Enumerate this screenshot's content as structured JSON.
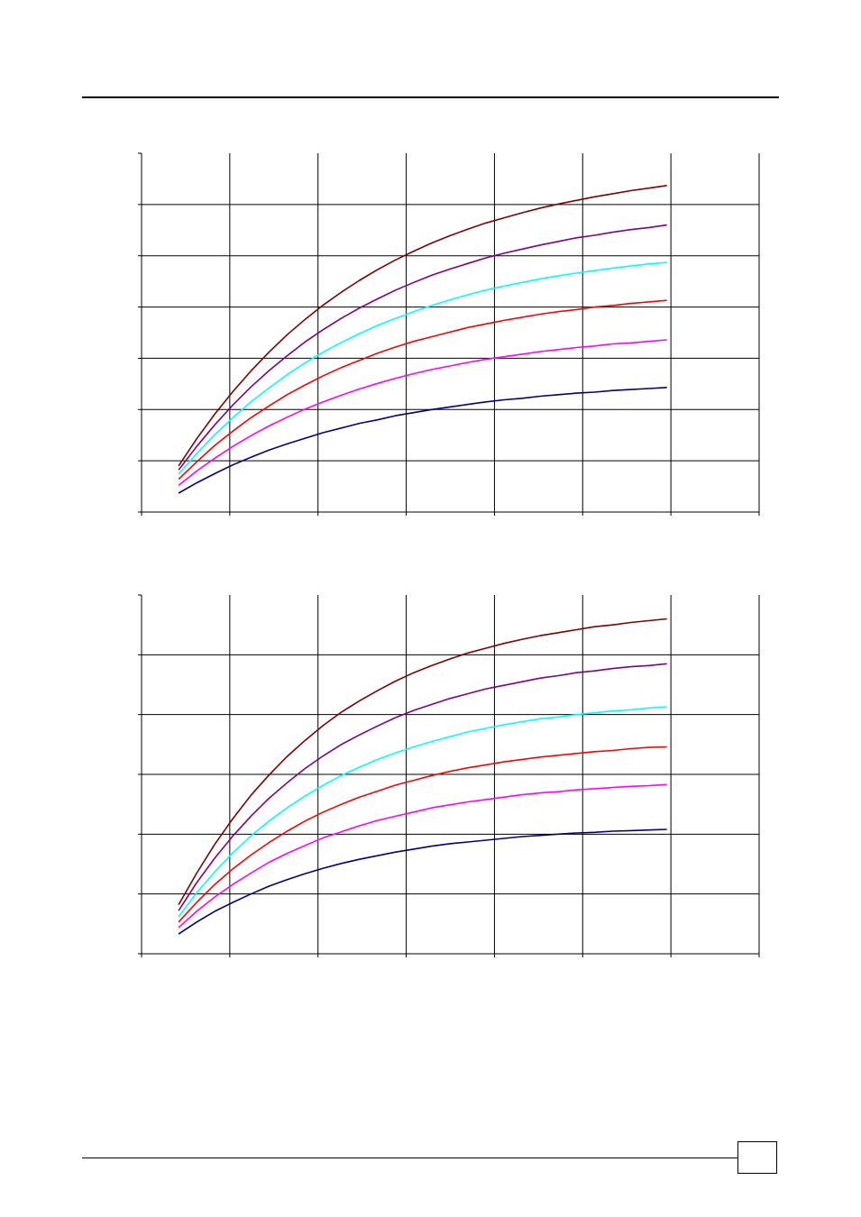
{
  "page": {
    "page_number": ""
  },
  "chart_data": [
    {
      "type": "line",
      "title": "",
      "xlabel": "",
      "ylabel": "",
      "xlim": [
        0,
        7
      ],
      "ylim": [
        0,
        7
      ],
      "grid": true,
      "legend": "none",
      "x": [
        0.42,
        0.625,
        0.83,
        1.035,
        1.24,
        1.445,
        1.65,
        1.855,
        2.06,
        2.265,
        2.47,
        2.675,
        2.88,
        3.085,
        3.29,
        3.495,
        3.7,
        3.905,
        4.11,
        4.315,
        4.52,
        4.725,
        4.93,
        5.135,
        5.34,
        5.545,
        5.75,
        5.955
      ],
      "series": [
        {
          "color": "#800000",
          "values": [
            0.9,
            1.43,
            1.91,
            2.35,
            2.75,
            3.12,
            3.46,
            3.76,
            4.04,
            4.29,
            4.52,
            4.73,
            4.92,
            5.09,
            5.25,
            5.39,
            5.52,
            5.64,
            5.74,
            5.84,
            5.93,
            6.01,
            6.08,
            6.15,
            6.21,
            6.27,
            6.32,
            6.37
          ]
        },
        {
          "color": "#800080",
          "values": [
            0.82,
            1.28,
            1.7,
            2.09,
            2.44,
            2.76,
            3.05,
            3.32,
            3.56,
            3.78,
            3.98,
            4.16,
            4.33,
            4.48,
            4.62,
            4.74,
            4.85,
            4.96,
            5.05,
            5.13,
            5.21,
            5.28,
            5.35,
            5.4,
            5.46,
            5.51,
            5.55,
            5.6
          ]
        },
        {
          "color": "#00ffff",
          "values": [
            0.74,
            1.14,
            1.51,
            1.84,
            2.15,
            2.42,
            2.68,
            2.91,
            3.12,
            3.31,
            3.48,
            3.64,
            3.78,
            3.91,
            4.03,
            4.14,
            4.24,
            4.33,
            4.41,
            4.48,
            4.55,
            4.61,
            4.66,
            4.71,
            4.76,
            4.8,
            4.84,
            4.87
          ]
        },
        {
          "color": "#ff0000",
          "values": [
            0.64,
            0.98,
            1.3,
            1.58,
            1.84,
            2.07,
            2.29,
            2.48,
            2.66,
            2.82,
            2.96,
            3.1,
            3.22,
            3.33,
            3.42,
            3.51,
            3.6,
            3.67,
            3.74,
            3.8,
            3.86,
            3.91,
            3.95,
            4.0,
            4.03,
            4.07,
            4.1,
            4.13
          ]
        },
        {
          "color": "#ff00ff",
          "values": [
            0.52,
            0.8,
            1.05,
            1.28,
            1.49,
            1.68,
            1.85,
            2.01,
            2.15,
            2.28,
            2.4,
            2.51,
            2.61,
            2.7,
            2.78,
            2.85,
            2.92,
            2.98,
            3.03,
            3.08,
            3.13,
            3.17,
            3.21,
            3.24,
            3.28,
            3.3,
            3.33,
            3.36
          ]
        },
        {
          "color": "#000080",
          "values": [
            0.37,
            0.57,
            0.75,
            0.92,
            1.07,
            1.21,
            1.33,
            1.44,
            1.55,
            1.64,
            1.73,
            1.8,
            1.88,
            1.94,
            2.0,
            2.05,
            2.1,
            2.15,
            2.19,
            2.22,
            2.26,
            2.29,
            2.32,
            2.34,
            2.37,
            2.39,
            2.41,
            2.43
          ]
        }
      ]
    },
    {
      "type": "line",
      "title": "",
      "xlabel": "",
      "ylabel": "",
      "xlim": [
        0,
        7
      ],
      "ylim": [
        0,
        6
      ],
      "grid": true,
      "legend": "none",
      "x": [
        0.42,
        0.625,
        0.83,
        1.035,
        1.24,
        1.445,
        1.65,
        1.855,
        2.06,
        2.265,
        2.47,
        2.675,
        2.88,
        3.085,
        3.29,
        3.495,
        3.7,
        3.905,
        4.11,
        4.315,
        4.52,
        4.725,
        4.93,
        5.135,
        5.34,
        5.545,
        5.75,
        5.955
      ],
      "series": [
        {
          "color": "#800000",
          "values": [
            0.82,
            1.35,
            1.83,
            2.26,
            2.65,
            2.99,
            3.3,
            3.57,
            3.82,
            4.04,
            4.23,
            4.4,
            4.56,
            4.7,
            4.82,
            4.93,
            5.03,
            5.11,
            5.19,
            5.26,
            5.32,
            5.37,
            5.42,
            5.47,
            5.5,
            5.54,
            5.57,
            5.6
          ]
        },
        {
          "color": "#800080",
          "values": [
            0.72,
            1.19,
            1.6,
            1.97,
            2.3,
            2.6,
            2.86,
            3.1,
            3.31,
            3.5,
            3.66,
            3.81,
            3.95,
            4.07,
            4.17,
            4.27,
            4.35,
            4.43,
            4.49,
            4.55,
            4.61,
            4.65,
            4.7,
            4.73,
            4.77,
            4.8,
            4.82,
            4.85
          ]
        },
        {
          "color": "#00ffff",
          "values": [
            0.62,
            1.02,
            1.37,
            1.69,
            1.97,
            2.22,
            2.44,
            2.64,
            2.82,
            2.98,
            3.12,
            3.25,
            3.36,
            3.46,
            3.55,
            3.63,
            3.71,
            3.77,
            3.83,
            3.88,
            3.93,
            3.96,
            4.0,
            4.03,
            4.06,
            4.08,
            4.11,
            4.13
          ]
        },
        {
          "color": "#ff0000",
          "values": [
            0.53,
            0.86,
            1.16,
            1.42,
            1.65,
            1.86,
            2.05,
            2.22,
            2.37,
            2.5,
            2.62,
            2.72,
            2.82,
            2.9,
            2.98,
            3.05,
            3.11,
            3.16,
            3.21,
            3.25,
            3.29,
            3.32,
            3.35,
            3.38,
            3.4,
            3.43,
            3.45,
            3.46
          ]
        },
        {
          "color": "#ff00ff",
          "values": [
            0.44,
            0.71,
            0.95,
            1.16,
            1.35,
            1.53,
            1.68,
            1.81,
            1.94,
            2.04,
            2.14,
            2.23,
            2.3,
            2.37,
            2.44,
            2.49,
            2.54,
            2.58,
            2.62,
            2.66,
            2.69,
            2.71,
            2.74,
            2.76,
            2.78,
            2.8,
            2.81,
            2.83
          ]
        },
        {
          "color": "#000080",
          "values": [
            0.33,
            0.53,
            0.71,
            0.86,
            1.0,
            1.13,
            1.24,
            1.34,
            1.43,
            1.51,
            1.58,
            1.64,
            1.7,
            1.75,
            1.8,
            1.84,
            1.87,
            1.9,
            1.93,
            1.96,
            1.98,
            2.0,
            2.02,
            2.03,
            2.05,
            2.06,
            2.07,
            2.08
          ]
        }
      ]
    }
  ]
}
